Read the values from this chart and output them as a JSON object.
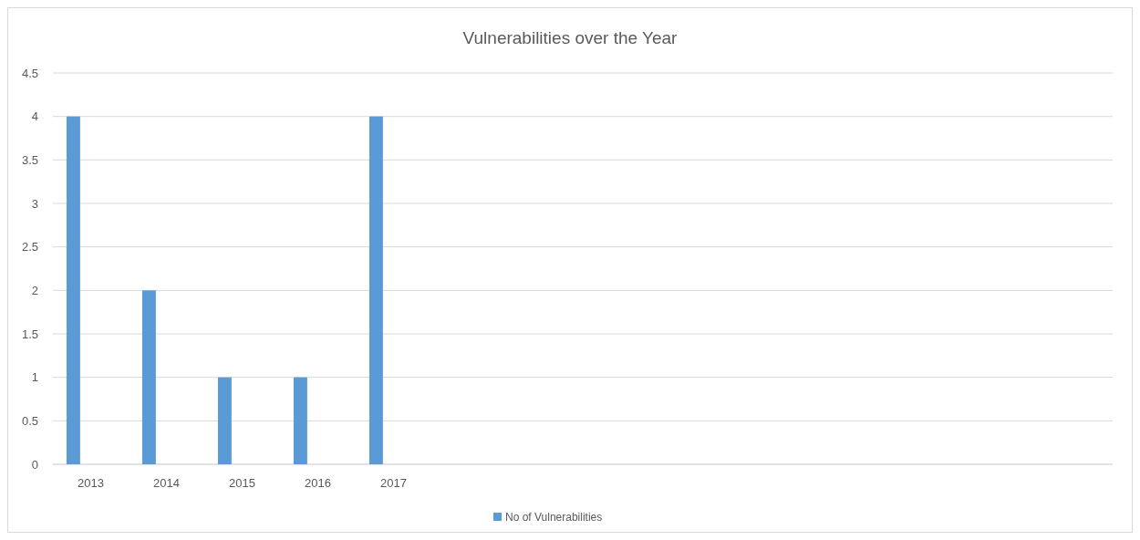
{
  "chart_data": {
    "type": "bar",
    "title": "Vulnerabilities over the Year",
    "categories": [
      "2013",
      "2014",
      "2015",
      "2016",
      "2017",
      null,
      null,
      null,
      null,
      null,
      null,
      null,
      null,
      null
    ],
    "series": [
      {
        "name": "No of Vulnerabilities",
        "color": "#5b9bd5",
        "values": [
          4,
          2,
          1,
          1,
          4,
          null,
          null,
          null,
          null,
          null,
          null,
          null,
          null,
          null
        ]
      }
    ],
    "ylim": [
      0,
      4.5
    ],
    "yticks": [
      0,
      0.5,
      1,
      1.5,
      2,
      2.5,
      3,
      3.5,
      4,
      4.5
    ],
    "grid": "y",
    "legend": "bottom"
  }
}
